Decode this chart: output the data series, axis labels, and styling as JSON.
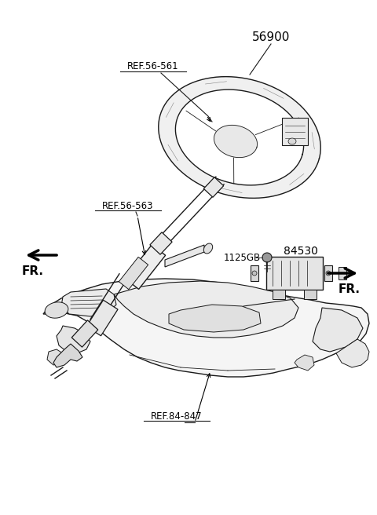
{
  "background_color": "#ffffff",
  "fig_width": 4.8,
  "fig_height": 6.56,
  "dpi": 100,
  "labels": {
    "ref_56_561": "REF.56-561",
    "ref_56_563": "REF.56-563",
    "ref_84_847": "REF.84-847",
    "part_56900": "56900",
    "part_84530": "84530",
    "part_1125gb": "1125GB",
    "fr_left": "FR.",
    "fr_right": "FR."
  },
  "colors": {
    "outline": "#1a1a1a",
    "fill_light": "#f8f8f8",
    "fill_mid": "#eeeeee",
    "fill_dark": "#e0e0e0",
    "white": "#ffffff"
  }
}
